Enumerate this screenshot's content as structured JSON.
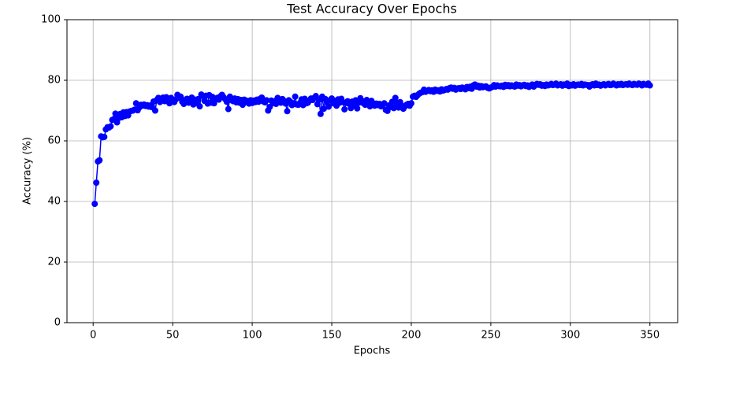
{
  "chart_data": {
    "type": "line",
    "title": "Test Accuracy Over Epochs",
    "x_label": "Epochs",
    "y_label": "Accuracy (%)",
    "color": "#0000ff",
    "marker": "o",
    "grid": true,
    "xlim": [
      -16.45,
      367.45
    ],
    "ylim": [
      0,
      100
    ],
    "xticks": [
      0,
      50,
      100,
      150,
      200,
      250,
      300,
      350
    ],
    "yticks": [
      0,
      20,
      40,
      60,
      80,
      100
    ],
    "x": [
      1,
      2,
      3,
      4,
      5,
      6,
      7,
      8,
      9,
      10,
      11,
      12,
      13,
      14,
      15,
      16,
      17,
      18,
      19,
      20,
      21,
      22,
      23,
      24,
      25,
      26,
      27,
      28,
      29,
      30,
      31,
      32,
      33,
      34,
      35,
      36,
      37,
      38,
      39,
      40,
      41,
      42,
      43,
      44,
      45,
      46,
      47,
      48,
      49,
      50,
      51,
      52,
      53,
      54,
      55,
      56,
      57,
      58,
      59,
      60,
      61,
      62,
      63,
      64,
      65,
      66,
      67,
      68,
      69,
      70,
      71,
      72,
      73,
      74,
      75,
      76,
      77,
      78,
      79,
      80,
      81,
      82,
      83,
      84,
      85,
      86,
      87,
      88,
      89,
      90,
      91,
      92,
      93,
      94,
      95,
      96,
      97,
      98,
      99,
      100,
      101,
      102,
      103,
      104,
      105,
      106,
      107,
      108,
      109,
      110,
      111,
      112,
      113,
      114,
      115,
      116,
      117,
      118,
      119,
      120,
      121,
      122,
      123,
      124,
      125,
      126,
      127,
      128,
      129,
      130,
      131,
      132,
      133,
      134,
      135,
      136,
      137,
      138,
      139,
      140,
      141,
      142,
      143,
      144,
      145,
      146,
      147,
      148,
      149,
      150,
      151,
      152,
      153,
      154,
      155,
      156,
      157,
      158,
      159,
      160,
      161,
      162,
      163,
      164,
      165,
      166,
      167,
      168,
      169,
      170,
      171,
      172,
      173,
      174,
      175,
      176,
      177,
      178,
      179,
      180,
      181,
      182,
      183,
      184,
      185,
      186,
      187,
      188,
      189,
      190,
      191,
      192,
      193,
      194,
      195,
      196,
      197,
      198,
      199,
      200,
      201,
      202,
      203,
      204,
      205,
      206,
      207,
      208,
      209,
      210,
      211,
      212,
      213,
      214,
      215,
      216,
      217,
      218,
      219,
      220,
      221,
      222,
      223,
      224,
      225,
      226,
      227,
      228,
      229,
      230,
      231,
      232,
      233,
      234,
      235,
      236,
      237,
      238,
      239,
      240,
      241,
      242,
      243,
      244,
      245,
      246,
      247,
      248,
      249,
      250,
      251,
      252,
      253,
      254,
      255,
      256,
      257,
      258,
      259,
      260,
      261,
      262,
      263,
      264,
      265,
      266,
      267,
      268,
      269,
      270,
      271,
      272,
      273,
      274,
      275,
      276,
      277,
      278,
      279,
      280,
      281,
      282,
      283,
      284,
      285,
      286,
      287,
      288,
      289,
      290,
      291,
      292,
      293,
      294,
      295,
      296,
      297,
      298,
      299,
      300,
      301,
      302,
      303,
      304,
      305,
      306,
      307,
      308,
      309,
      310,
      311,
      312,
      313,
      314,
      315,
      316,
      317,
      318,
      319,
      320,
      321,
      322,
      323,
      324,
      325,
      326,
      327,
      328,
      329,
      330,
      331,
      332,
      333,
      334,
      335,
      336,
      337,
      338,
      339,
      340,
      341,
      342,
      343,
      344,
      345,
      346,
      347,
      348,
      349,
      350
    ],
    "values": [
      39.2,
      46.2,
      53.2,
      53.6,
      61.5,
      61.2,
      61.3,
      63.8,
      64.5,
      64.4,
      64.8,
      66.9,
      67.2,
      69.0,
      66.1,
      67.5,
      68.9,
      67.8,
      69.4,
      68.2,
      69.5,
      68.4,
      69.7,
      69.9,
      70.0,
      70.3,
      72.4,
      70.1,
      71.0,
      71.9,
      71.6,
      72.0,
      71.5,
      71.8,
      71.3,
      71.7,
      71.1,
      73.0,
      70.0,
      73.5,
      74.2,
      72.8,
      73.9,
      74.3,
      73.1,
      74.4,
      73.6,
      72.4,
      74.2,
      73.0,
      72.8,
      73.7,
      75.2,
      74.3,
      74.6,
      72.9,
      72.2,
      73.5,
      73.9,
      72.6,
      73.1,
      74.3,
      72.0,
      73.6,
      72.5,
      73.8,
      71.4,
      75.3,
      74.8,
      73.2,
      74.9,
      72.3,
      75.1,
      72.6,
      74.5,
      72.4,
      73.9,
      74.2,
      73.6,
      74.7,
      75.2,
      74.4,
      73.8,
      72.9,
      70.5,
      74.6,
      73.4,
      73.1,
      74.0,
      72.7,
      73.8,
      72.6,
      73.5,
      71.9,
      73.6,
      72.8,
      73.2,
      72.3,
      73.4,
      72.5,
      73.3,
      72.8,
      73.6,
      72.9,
      73.9,
      74.3,
      73.0,
      72.7,
      73.4,
      70.0,
      71.2,
      73.3,
      72.4,
      73.1,
      72.2,
      74.2,
      73.5,
      72.6,
      73.8,
      73.2,
      72.3,
      69.8,
      73.4,
      72.9,
      71.8,
      72.4,
      74.6,
      72.0,
      71.9,
      72.5,
      73.7,
      71.8,
      73.9,
      72.4,
      72.6,
      73.3,
      74.0,
      73.5,
      74.2,
      74.8,
      72.1,
      73.6,
      68.9,
      74.6,
      70.6,
      73.8,
      72.7,
      71.3,
      73.4,
      74.0,
      72.4,
      73.2,
      71.6,
      73.7,
      72.6,
      73.9,
      72.8,
      70.4,
      72.5,
      73.1,
      72.2,
      70.8,
      73.0,
      71.6,
      73.4,
      70.7,
      72.6,
      74.1,
      73.2,
      72.4,
      71.9,
      73.5,
      72.7,
      71.4,
      73.2,
      72.0,
      71.6,
      72.3,
      71.8,
      72.2,
      71.4,
      71.9,
      72.4,
      70.2,
      69.9,
      71.7,
      71.2,
      72.9,
      70.8,
      74.2,
      72.5,
      71.0,
      72.8,
      71.6,
      70.6,
      71.4,
      71.9,
      72.2,
      71.6,
      72.4,
      74.6,
      74.9,
      74.5,
      75.1,
      75.6,
      75.9,
      76.1,
      76.9,
      76.2,
      76.5,
      76.8,
      76.4,
      76.7,
      76.2,
      76.9,
      76.5,
      76.7,
      76.3,
      77.0,
      76.6,
      76.8,
      77.1,
      76.9,
      77.4,
      77.6,
      77.2,
      77.5,
      76.9,
      77.3,
      77.4,
      77.1,
      77.6,
      77.3,
      77.0,
      77.8,
      77.4,
      77.9,
      77.2,
      78.3,
      78.6,
      77.9,
      78.2,
      77.6,
      78.1,
      77.7,
      77.9,
      78.0,
      77.5,
      77.3,
      77.6,
      77.8,
      78.4,
      77.9,
      78.3,
      78.1,
      78.0,
      78.2,
      77.8,
      78.5,
      78.1,
      78.4,
      78.0,
      78.3,
      78.1,
      77.9,
      78.6,
      78.2,
      78.4,
      78.0,
      78.3,
      78.5,
      78.1,
      78.3,
      77.8,
      78.2,
      78.6,
      77.9,
      78.4,
      78.8,
      78.5,
      78.7,
      78.2,
      78.4,
      78.1,
      78.6,
      78.3,
      78.5,
      78.8,
      78.4,
      78.6,
      78.9,
      78.3,
      78.5,
      78.7,
      78.2,
      78.6,
      78.4,
      78.9,
      78.1,
      78.5,
      78.3,
      78.7,
      78.2,
      78.5,
      78.6,
      78.4,
      78.8,
      78.3,
      78.6,
      78.5,
      78.4,
      77.9,
      78.5,
      78.7,
      78.3,
      78.9,
      78.4,
      78.6,
      78.2,
      78.5,
      78.7,
      78.3,
      78.6,
      78.8,
      78.4,
      78.5,
      78.9,
      78.6,
      78.3,
      78.7,
      78.5,
      78.8,
      78.4,
      78.6,
      78.7,
      78.5,
      78.9,
      78.6,
      78.4,
      78.8,
      78.6,
      78.5,
      78.9,
      78.7,
      78.3,
      78.8,
      78.6,
      78.5,
      78.9,
      78.3
    ]
  }
}
